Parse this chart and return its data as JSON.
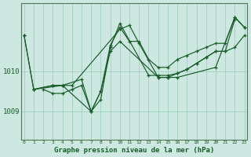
{
  "bg_color": "#cce8e0",
  "grid_color": "#99ccbb",
  "line_color": "#1a5c2a",
  "text_color": "#1a5c2a",
  "xlabel": "Graphe pression niveau de la mer (hPa)",
  "yticks": [
    1009,
    1010
  ],
  "ylim": [
    1008.3,
    1011.7
  ],
  "xlim": [
    -0.3,
    23.3
  ],
  "series": [
    {
      "x": [
        0,
        1,
        4,
        5,
        10,
        11,
        12,
        14,
        15,
        16,
        20,
        22,
        23
      ],
      "y": [
        1010.9,
        1009.55,
        1009.65,
        1009.65,
        1011.05,
        1011.15,
        1010.7,
        1009.85,
        1009.85,
        1009.85,
        1010.1,
        1011.35,
        1011.1
      ]
    },
    {
      "x": [
        0,
        1,
        3,
        4,
        6,
        7,
        8,
        9,
        10,
        13,
        14,
        15,
        16,
        17,
        18,
        19,
        20,
        21,
        22
      ],
      "y": [
        1010.9,
        1009.55,
        1009.65,
        1009.65,
        1009.8,
        1009.0,
        1009.3,
        1010.6,
        1011.2,
        1009.9,
        1009.9,
        1009.9,
        1009.95,
        1010.05,
        1010.2,
        1010.35,
        1010.5,
        1010.5,
        1011.3
      ]
    },
    {
      "x": [
        1,
        3,
        4,
        7,
        8,
        9,
        10,
        11,
        12,
        13,
        14,
        15,
        16,
        17,
        18,
        19,
        20,
        21,
        22,
        23
      ],
      "y": [
        1009.55,
        1009.65,
        1009.65,
        1009.0,
        1009.5,
        1010.65,
        1011.1,
        1010.75,
        1010.75,
        1010.3,
        1010.1,
        1010.1,
        1010.3,
        1010.4,
        1010.5,
        1010.6,
        1010.7,
        1010.7,
        1011.35,
        1011.1
      ]
    },
    {
      "x": [
        2,
        3,
        4,
        5,
        6,
        7,
        8,
        9,
        10,
        14,
        15,
        16,
        17,
        18,
        19,
        20,
        21,
        22,
        23
      ],
      "y": [
        1009.55,
        1009.45,
        1009.45,
        1009.55,
        1009.65,
        1009.0,
        1009.5,
        1010.5,
        1010.75,
        1009.85,
        1009.85,
        1009.95,
        1010.05,
        1010.2,
        1010.35,
        1010.5,
        1010.5,
        1010.6,
        1010.9
      ]
    }
  ],
  "xtick_labels": [
    "0",
    "1",
    "2",
    "3",
    "4",
    "5",
    "6",
    "7",
    "8",
    "9",
    "10",
    "11",
    "12",
    "13",
    "14",
    "15",
    "16",
    "17",
    "18",
    "19",
    "20",
    "21",
    "22",
    "23"
  ]
}
